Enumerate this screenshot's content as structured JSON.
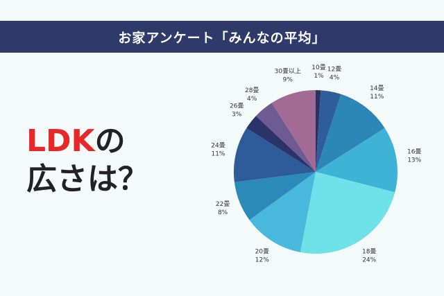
{
  "header": {
    "title": "お家アンケート「みんなの平均」"
  },
  "headline": {
    "accent": "LDK",
    "line1_rest": "の",
    "line2": "広さは？"
  },
  "chart_data": {
    "type": "pie",
    "title": "",
    "slices": [
      {
        "category": "10畳",
        "percent_label": "1%",
        "value": 1,
        "color": "#2a3163"
      },
      {
        "category": "12畳",
        "percent_label": "4%",
        "value": 4,
        "color": "#2f5d9c"
      },
      {
        "category": "14畳",
        "percent_label": "11%",
        "value": 11,
        "color": "#2c86b8"
      },
      {
        "category": "16畳",
        "percent_label": "13%",
        "value": 13,
        "color": "#3fb3d6"
      },
      {
        "category": "18畳",
        "percent_label": "24%",
        "value": 24,
        "color": "#6fe1e8"
      },
      {
        "category": "20畳",
        "percent_label": "12%",
        "value": 12,
        "color": "#48b9da"
      },
      {
        "category": "22畳",
        "percent_label": "8%",
        "value": 8,
        "color": "#2b8ab9"
      },
      {
        "category": "24畳",
        "percent_label": "11%",
        "value": 11,
        "color": "#2e5c98"
      },
      {
        "category": "26畳",
        "percent_label": "3%",
        "value": 3,
        "color": "#2b336a"
      },
      {
        "category": "28畳",
        "percent_label": "4%",
        "value": 4,
        "color": "#6d5b91"
      },
      {
        "category": "30畳以上",
        "percent_label": "9%",
        "value": 9,
        "color": "#a26b95"
      }
    ]
  }
}
